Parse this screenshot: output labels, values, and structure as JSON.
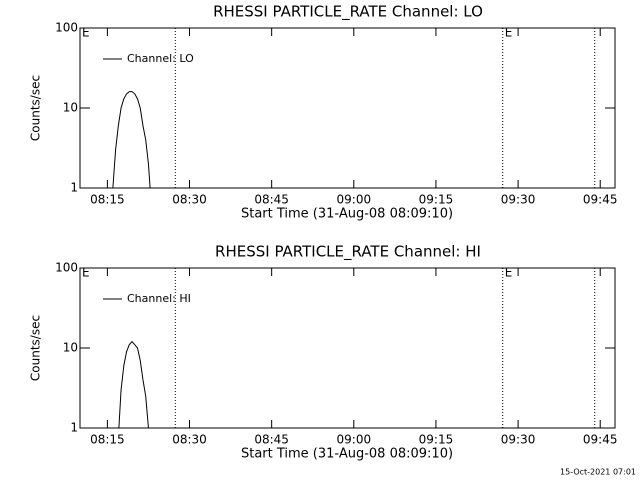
{
  "chart_data": [
    {
      "type": "line",
      "title": "RHESSI PARTICLE_RATE Channel: LO",
      "xlabel": "Start Time (31-Aug-08 08:09:10)",
      "ylabel": "Counts/sec",
      "x": [
        496.0,
        496.5,
        497.0,
        497.5,
        498.0,
        498.5,
        499.0,
        499.5,
        500.0,
        500.5,
        501.0,
        501.5,
        502.0,
        502.5,
        502.8
      ],
      "series": [
        {
          "name": "Channel: LO",
          "color": "#000000",
          "values": [
            1,
            3,
            6,
            10,
            13,
            15,
            16,
            16,
            15,
            13,
            10,
            6,
            4,
            2,
            1
          ]
        }
      ],
      "xlim": [
        490,
        587.7
      ],
      "xticks": [
        {
          "value": 495,
          "label": "08:15"
        },
        {
          "value": 510,
          "label": "08:30"
        },
        {
          "value": 525,
          "label": "08:45"
        },
        {
          "value": 540,
          "label": "09:00"
        },
        {
          "value": 555,
          "label": "09:15"
        },
        {
          "value": 570,
          "label": "09:30"
        },
        {
          "value": 585,
          "label": "09:45"
        }
      ],
      "ylim": [
        1,
        100
      ],
      "yticks": [
        1,
        10,
        100
      ],
      "log_y": true,
      "vlines": [
        507.4,
        567.2,
        584.0
      ],
      "annotations": [
        {
          "text": "E",
          "x": 490
        },
        {
          "text": "E",
          "x": 567.2
        }
      ]
    },
    {
      "type": "line",
      "title": "RHESSI PARTICLE_RATE Channel: HI",
      "xlabel": "Start Time (31-Aug-08 08:09:10)",
      "ylabel": "Counts/sec",
      "x": [
        497.1,
        497.5,
        498.0,
        498.5,
        499.0,
        499.5,
        500.0,
        500.5,
        501.0,
        501.5,
        502.0,
        502.5
      ],
      "series": [
        {
          "name": "Channel: HI",
          "color": "#000000",
          "values": [
            1,
            3,
            6,
            9,
            11,
            12,
            11,
            10,
            7,
            4,
            2.5,
            1
          ]
        }
      ],
      "xlim": [
        490,
        587.7
      ],
      "xticks": [
        {
          "value": 495,
          "label": "08:15"
        },
        {
          "value": 510,
          "label": "08:30"
        },
        {
          "value": 525,
          "label": "08:45"
        },
        {
          "value": 540,
          "label": "09:00"
        },
        {
          "value": 555,
          "label": "09:15"
        },
        {
          "value": 570,
          "label": "09:30"
        },
        {
          "value": 585,
          "label": "09:45"
        }
      ],
      "ylim": [
        1,
        100
      ],
      "yticks": [
        1,
        10,
        100
      ],
      "log_y": true,
      "vlines": [
        507.4,
        567.2,
        584.0
      ],
      "annotations": [
        {
          "text": "E",
          "x": 490
        },
        {
          "text": "E",
          "x": 567.2
        }
      ]
    }
  ],
  "footer": "15-Oct-2021 07:01"
}
